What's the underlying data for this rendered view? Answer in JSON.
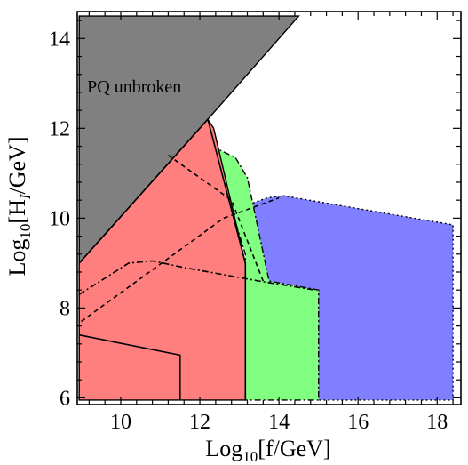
{
  "chart_data": {
    "type": "area",
    "xlabel_parts": {
      "pre": "Log",
      "sub": "10",
      "post": "[f/GeV]"
    },
    "ylabel_parts": {
      "pre": "Log",
      "sub": "10",
      "mid": "[H",
      "sub2": "I",
      "post": "/GeV]"
    },
    "xlim": [
      8.9,
      18.6
    ],
    "ylim": [
      5.85,
      14.6
    ],
    "xticks": [
      10,
      12,
      14,
      16,
      18
    ],
    "yticks": [
      6,
      8,
      10,
      12,
      14
    ],
    "xtick_labels": [
      "10",
      "12",
      "14",
      "16",
      "18"
    ],
    "ytick_labels": [
      "6",
      "8",
      "10",
      "12",
      "14"
    ],
    "annotations": [
      {
        "text": "PQ unbroken",
        "x": 9.15,
        "y": 12.8
      }
    ],
    "regions": [
      {
        "color": "#7f7fff",
        "border": "dotted",
        "points": [
          [
            12.5,
            11.0
          ],
          [
            12.9,
            10.2
          ],
          [
            13.7,
            10.45
          ],
          [
            14.1,
            10.5
          ],
          [
            18.4,
            9.85
          ],
          [
            18.4,
            5.95
          ],
          [
            15.0,
            5.95
          ],
          [
            15.0,
            8.4
          ],
          [
            13.55,
            8.6
          ],
          [
            13.3,
            9.7
          ]
        ]
      },
      {
        "color": "#80ff80",
        "border": "dotdash",
        "points": [
          [
            12.3,
            11.6
          ],
          [
            12.9,
            11.35
          ],
          [
            13.2,
            10.9
          ],
          [
            13.75,
            8.6
          ],
          [
            15.0,
            8.4
          ],
          [
            15.0,
            5.95
          ],
          [
            13.15,
            5.95
          ],
          [
            13.15,
            9.2
          ]
        ]
      },
      {
        "color": "#ff7f7f",
        "border": "solid",
        "points": [
          [
            8.95,
            9.0
          ],
          [
            12.2,
            12.2
          ],
          [
            12.35,
            12.0
          ],
          [
            13.15,
            9.0
          ],
          [
            13.15,
            5.95
          ],
          [
            8.95,
            5.95
          ]
        ]
      },
      {
        "color": "#808080",
        "border": "solid",
        "points": [
          [
            8.95,
            14.5
          ],
          [
            14.5,
            14.5
          ],
          [
            12.2,
            12.2
          ],
          [
            8.95,
            9.0
          ]
        ]
      }
    ],
    "lines": [
      {
        "style": "dashed",
        "points": [
          [
            9.0,
            7.7
          ],
          [
            12.6,
            10.0
          ],
          [
            14.0,
            10.45
          ]
        ]
      },
      {
        "style": "dashed",
        "points": [
          [
            11.2,
            11.4
          ],
          [
            12.8,
            10.4
          ],
          [
            13.6,
            8.6
          ]
        ]
      },
      {
        "style": "dotdash",
        "points": [
          [
            8.95,
            8.3
          ],
          [
            10.2,
            9.0
          ],
          [
            10.8,
            9.05
          ],
          [
            11.6,
            8.9
          ],
          [
            13.5,
            8.6
          ],
          [
            14.9,
            8.4
          ]
        ]
      },
      {
        "style": "solid",
        "points": [
          [
            8.95,
            7.4
          ],
          [
            11.5,
            6.95
          ],
          [
            11.5,
            5.95
          ]
        ]
      },
      {
        "style": "solid",
        "points": [
          [
            8.95,
            9.0
          ],
          [
            12.2,
            12.2
          ]
        ]
      },
      {
        "style": "solid",
        "points": [
          [
            12.2,
            12.2
          ],
          [
            13.15,
            9.0
          ],
          [
            13.15,
            5.95
          ]
        ]
      }
    ]
  }
}
